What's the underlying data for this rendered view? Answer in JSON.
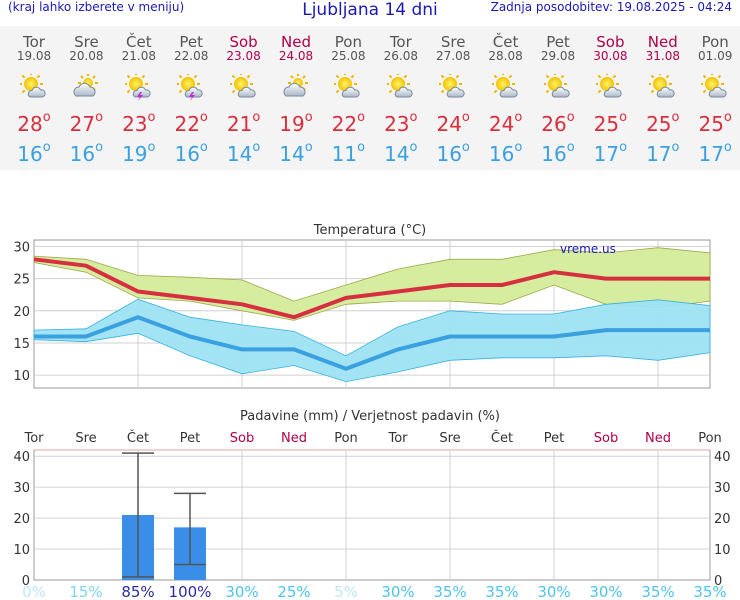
{
  "header": {
    "menu_hint": "(kraj lahko izberete v meniju)",
    "title": "Ljubljana 14 dni",
    "updated": "Zadnja posodobitev: 19.08.2025 - 04:24"
  },
  "days": [
    {
      "name": "Tor",
      "date": "19.08",
      "weekend": false,
      "icon": "sun-cloud-icon",
      "tmax": "28",
      "tmin": "16"
    },
    {
      "name": "Sre",
      "date": "20.08",
      "weekend": false,
      "icon": "cloud-sun-icon",
      "tmax": "27",
      "tmin": "16"
    },
    {
      "name": "Čet",
      "date": "21.08",
      "weekend": false,
      "icon": "sun-storm-icon",
      "tmax": "23",
      "tmin": "19"
    },
    {
      "name": "Pet",
      "date": "22.08",
      "weekend": false,
      "icon": "sun-storm-icon",
      "tmax": "22",
      "tmin": "16"
    },
    {
      "name": "Sob",
      "date": "23.08",
      "weekend": true,
      "icon": "sun-cloud-icon",
      "tmax": "21",
      "tmin": "14"
    },
    {
      "name": "Ned",
      "date": "24.08",
      "weekend": true,
      "icon": "cloud-sun-icon",
      "tmax": "19",
      "tmin": "14"
    },
    {
      "name": "Pon",
      "date": "25.08",
      "weekend": false,
      "icon": "sun-cloud-icon",
      "tmax": "22",
      "tmin": "11"
    },
    {
      "name": "Tor",
      "date": "26.08",
      "weekend": false,
      "icon": "sun-cloud-icon",
      "tmax": "23",
      "tmin": "14"
    },
    {
      "name": "Sre",
      "date": "27.08",
      "weekend": false,
      "icon": "sun-cloud-icon",
      "tmax": "24",
      "tmin": "16"
    },
    {
      "name": "Čet",
      "date": "28.08",
      "weekend": false,
      "icon": "sun-cloud-icon",
      "tmax": "24",
      "tmin": "16"
    },
    {
      "name": "Pet",
      "date": "29.08",
      "weekend": false,
      "icon": "sun-cloud-icon",
      "tmax": "26",
      "tmin": "16"
    },
    {
      "name": "Sob",
      "date": "30.08",
      "weekend": true,
      "icon": "sun-cloud-icon",
      "tmax": "25",
      "tmin": "17"
    },
    {
      "name": "Ned",
      "date": "31.08",
      "weekend": true,
      "icon": "sun-cloud-icon",
      "tmax": "25",
      "tmin": "17"
    },
    {
      "name": "Pon",
      "date": "01.09",
      "weekend": false,
      "icon": "sun-cloud-icon",
      "tmax": "25",
      "tmin": "17"
    }
  ],
  "degree_symbol": "o",
  "chart_data": [
    {
      "type": "line",
      "title": "Temperatura (°C)",
      "watermark": "vreme.us",
      "x": [
        "Tor",
        "Sre",
        "Čet",
        "Pet",
        "Sob",
        "Ned",
        "Pon",
        "Tor",
        "Sre",
        "Čet",
        "Pet",
        "Sob",
        "Ned",
        "Pon"
      ],
      "ylim": [
        8,
        31
      ],
      "yticks": [
        10,
        15,
        20,
        25,
        30
      ],
      "grid": true,
      "series": [
        {
          "values": [
            28,
            27,
            23,
            22,
            21,
            19,
            22,
            23,
            24,
            24,
            26,
            25,
            25,
            25
          ],
          "color": "#d63040"
        },
        {
          "values": [
            16,
            16,
            19,
            16,
            14,
            14,
            11,
            14,
            16,
            16,
            16,
            17,
            17,
            17
          ],
          "color": "#3aa0e0"
        }
      ],
      "bands": [
        {
          "upper": [
            28.5,
            28,
            25.5,
            25.2,
            24.8,
            21.5,
            24,
            26.5,
            28,
            28,
            29.5,
            29,
            29.8,
            29
          ],
          "lower": [
            27.5,
            26,
            22,
            21.5,
            20,
            18.5,
            21,
            21.5,
            21.5,
            21,
            24,
            21,
            20.5,
            21.5
          ],
          "color": "#d4ec9a"
        },
        {
          "upper": [
            17,
            17.2,
            21.8,
            19,
            17.8,
            16.8,
            13,
            17.5,
            20,
            19.5,
            19.5,
            21,
            21.7,
            20.8
          ],
          "lower": [
            15.5,
            15.2,
            16.5,
            13,
            10.2,
            11.5,
            9,
            10.5,
            12.3,
            12.7,
            12.7,
            13,
            12.3,
            13.5
          ],
          "color": "#9de3f2"
        }
      ]
    },
    {
      "type": "bar",
      "title": "Padavine (mm) / Verjetnost padavin (%)",
      "categories": [
        {
          "name": "Tor",
          "weekend": false
        },
        {
          "name": "Sre",
          "weekend": false
        },
        {
          "name": "Čet",
          "weekend": false
        },
        {
          "name": "Pet",
          "weekend": false
        },
        {
          "name": "Sob",
          "weekend": true
        },
        {
          "name": "Ned",
          "weekend": true
        },
        {
          "name": "Pon",
          "weekend": false
        },
        {
          "name": "Tor",
          "weekend": false
        },
        {
          "name": "Sre",
          "weekend": false
        },
        {
          "name": "Čet",
          "weekend": false
        },
        {
          "name": "Pet",
          "weekend": false
        },
        {
          "name": "Sob",
          "weekend": true
        },
        {
          "name": "Ned",
          "weekend": true
        },
        {
          "name": "Pon",
          "weekend": false
        }
      ],
      "values": [
        0,
        0,
        21,
        17,
        0,
        0,
        0,
        0,
        0,
        0,
        0,
        0,
        0,
        0
      ],
      "error_high": [
        0,
        0,
        41,
        28,
        0,
        0,
        0,
        0,
        0,
        0,
        0,
        0,
        0,
        0
      ],
      "error_low": [
        0,
        0,
        1,
        5,
        0,
        0,
        0,
        0,
        0,
        0,
        0,
        0,
        0,
        0
      ],
      "ylim": [
        0,
        42
      ],
      "yticks": [
        0,
        10,
        20,
        30,
        40
      ],
      "probability": [
        "0%",
        "15%",
        "85%",
        "100%",
        "30%",
        "25%",
        "5%",
        "30%",
        "35%",
        "35%",
        "30%",
        "30%",
        "35%",
        "35%"
      ],
      "probability_colors": [
        "#bfe6f7",
        "#7fd3f0",
        "#2c2ca0",
        "#2c2ca0",
        "#4fc3ee",
        "#4fc3ee",
        "#bfe6f7",
        "#4fc3ee",
        "#4fc3ee",
        "#4fc3ee",
        "#4fc3ee",
        "#4fc3ee",
        "#4fc3ee",
        "#4fc3ee"
      ],
      "bar_color": "#3a8ee8"
    }
  ]
}
